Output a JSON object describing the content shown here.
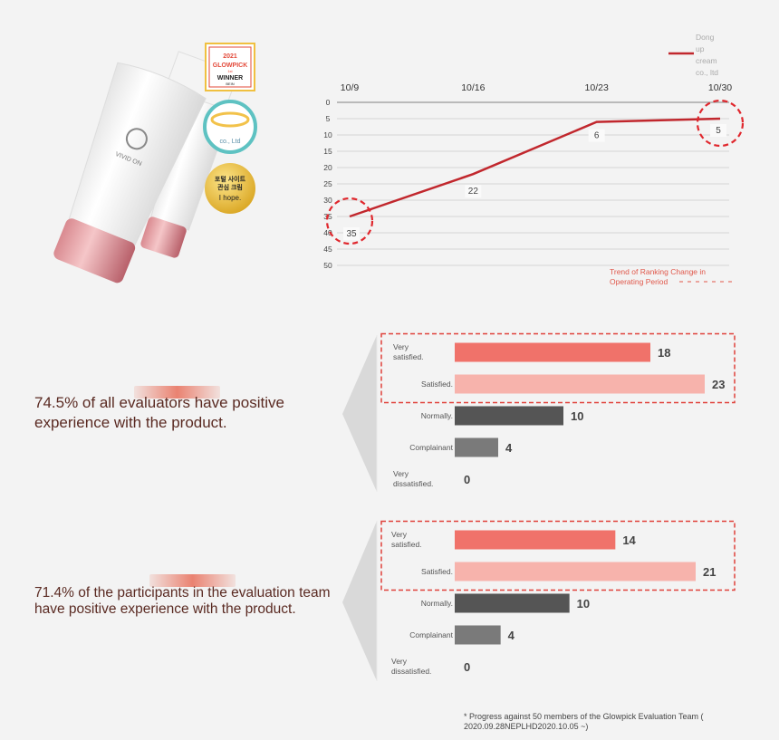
{
  "badges": {
    "glowpick_year": "2021",
    "glowpick_brand": "GLOWPICK",
    "glowpick_sub": "1st",
    "glowpick_winner": "WINNER",
    "glowpick_cat": "BEIN",
    "company_badge": "co., Ltd",
    "company_badge_sub": "",
    "korean_badge_1": "포털 사이트",
    "korean_badge_2": "관심 크림",
    "korean_badge_3": "I hope."
  },
  "tube_brand": "VIVID ON",
  "chart_data": [
    {
      "type": "line",
      "x": [
        "10/9",
        "10/16",
        "10/23",
        "10/30"
      ],
      "series": [
        {
          "name": "Dong up cream co., ltd",
          "values": [
            35,
            22,
            6,
            5
          ],
          "color": "#c1272d"
        }
      ],
      "legend_lines": [
        "Dong",
        "up",
        "cream",
        "co., ltd"
      ],
      "y_ticks": [
        "0",
        "5",
        "10",
        "15",
        "20",
        "25",
        "30",
        "35",
        "40",
        "45",
        "50"
      ],
      "ylim": [
        0,
        50
      ],
      "y_inverted": true,
      "grid": true,
      "highlighted": [
        0,
        3
      ],
      "footnote": [
        "Trend of Ranking Change in",
        "Operating Period"
      ]
    },
    {
      "type": "bar",
      "orientation": "horizontal",
      "categories": [
        [
          "Very",
          "satisfied."
        ],
        [
          "Satisfied."
        ],
        [
          "Normally."
        ],
        [
          "Complainant"
        ],
        [
          "Very",
          "dissatisfied."
        ]
      ],
      "values": [
        18,
        23,
        10,
        4,
        0
      ],
      "colors": [
        "#f0726a",
        "#f7b3ac",
        "#555555",
        "#7a7a7a",
        "#999999"
      ],
      "highlighted": [
        0,
        1
      ],
      "xlim": [
        0,
        23
      ]
    },
    {
      "type": "bar",
      "orientation": "horizontal",
      "categories": [
        [
          "Very",
          "satisfied."
        ],
        [
          "Satisfied."
        ],
        [
          "Normally."
        ],
        [
          "Complainant"
        ],
        [
          "Very",
          "dissatisfied."
        ]
      ],
      "values": [
        14,
        21,
        10,
        4,
        0
      ],
      "colors": [
        "#f0726a",
        "#f7b3ac",
        "#555555",
        "#7a7a7a",
        "#999999"
      ],
      "highlighted": [
        0,
        1
      ],
      "xlim": [
        0,
        21
      ]
    }
  ],
  "statements": {
    "first": [
      "74.5% of all evaluators have positive",
      "experience with the product."
    ],
    "second": [
      "71.4% of the participants in the evaluation team",
      "have positive experience with the product."
    ]
  },
  "footnote": [
    "* Progress against 50 members of the Glowpick Evaluation Team (",
    "2020.09.28NEPLHD2020.10.05 ~)"
  ],
  "colors": {
    "accent": "#c1272d",
    "text_dark": "#5a2a22",
    "bar_strong": "#f0726a",
    "bar_light": "#f7b3ac"
  }
}
